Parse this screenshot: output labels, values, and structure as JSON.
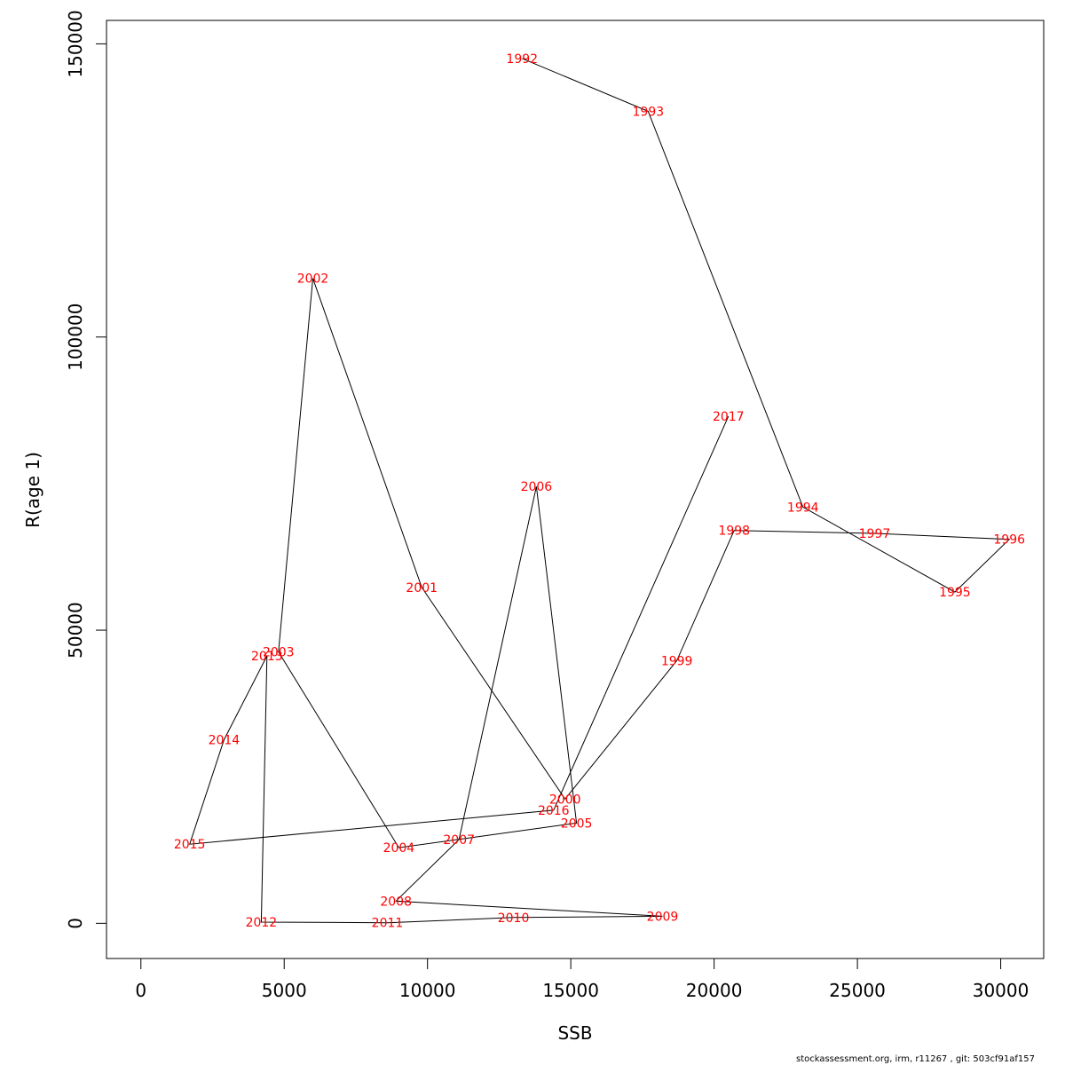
{
  "chart_data": {
    "type": "line",
    "xlabel": "SSB",
    "ylabel": "R(age 1)",
    "xlim": [
      -1200,
      31500
    ],
    "ylim": [
      -6000,
      154000
    ],
    "x_ticks": [
      0,
      5000,
      10000,
      15000,
      20000,
      25000,
      30000
    ],
    "y_ticks": [
      0,
      50000,
      100000,
      150000
    ],
    "grid": false,
    "legend": "none",
    "line_color": "#000000",
    "label_color": "#ff0000",
    "points": [
      {
        "year": "1992",
        "x": 13300,
        "y": 147500
      },
      {
        "year": "1993",
        "x": 17700,
        "y": 138500
      },
      {
        "year": "1994",
        "x": 23100,
        "y": 71000
      },
      {
        "year": "1995",
        "x": 28400,
        "y": 56500
      },
      {
        "year": "1996",
        "x": 30300,
        "y": 65500
      },
      {
        "year": "1997",
        "x": 25600,
        "y": 66500
      },
      {
        "year": "1998",
        "x": 20700,
        "y": 67000
      },
      {
        "year": "1999",
        "x": 18700,
        "y": 44800
      },
      {
        "year": "2000",
        "x": 14800,
        "y": 21200
      },
      {
        "year": "2001",
        "x": 9800,
        "y": 57300
      },
      {
        "year": "2002",
        "x": 6000,
        "y": 110000
      },
      {
        "year": "2003",
        "x": 4800,
        "y": 46300
      },
      {
        "year": "2004",
        "x": 9000,
        "y": 12900
      },
      {
        "year": "2005",
        "x": 15200,
        "y": 17100
      },
      {
        "year": "2006",
        "x": 13800,
        "y": 74500
      },
      {
        "year": "2007",
        "x": 11100,
        "y": 14300
      },
      {
        "year": "2008",
        "x": 8900,
        "y": 3800
      },
      {
        "year": "2009",
        "x": 18200,
        "y": 1200
      },
      {
        "year": "2010",
        "x": 13000,
        "y": 1000
      },
      {
        "year": "2011",
        "x": 8600,
        "y": 100
      },
      {
        "year": "2012",
        "x": 4200,
        "y": 200
      },
      {
        "year": "2013",
        "x": 4400,
        "y": 45600
      },
      {
        "year": "2014",
        "x": 2900,
        "y": 31300
      },
      {
        "year": "2015",
        "x": 1700,
        "y": 13500
      },
      {
        "year": "2016",
        "x": 14400,
        "y": 19300
      },
      {
        "year": "2017",
        "x": 20500,
        "y": 86500
      }
    ]
  },
  "footer": "stockassessment.org, irm, r11267 , git: 503cf91af157"
}
